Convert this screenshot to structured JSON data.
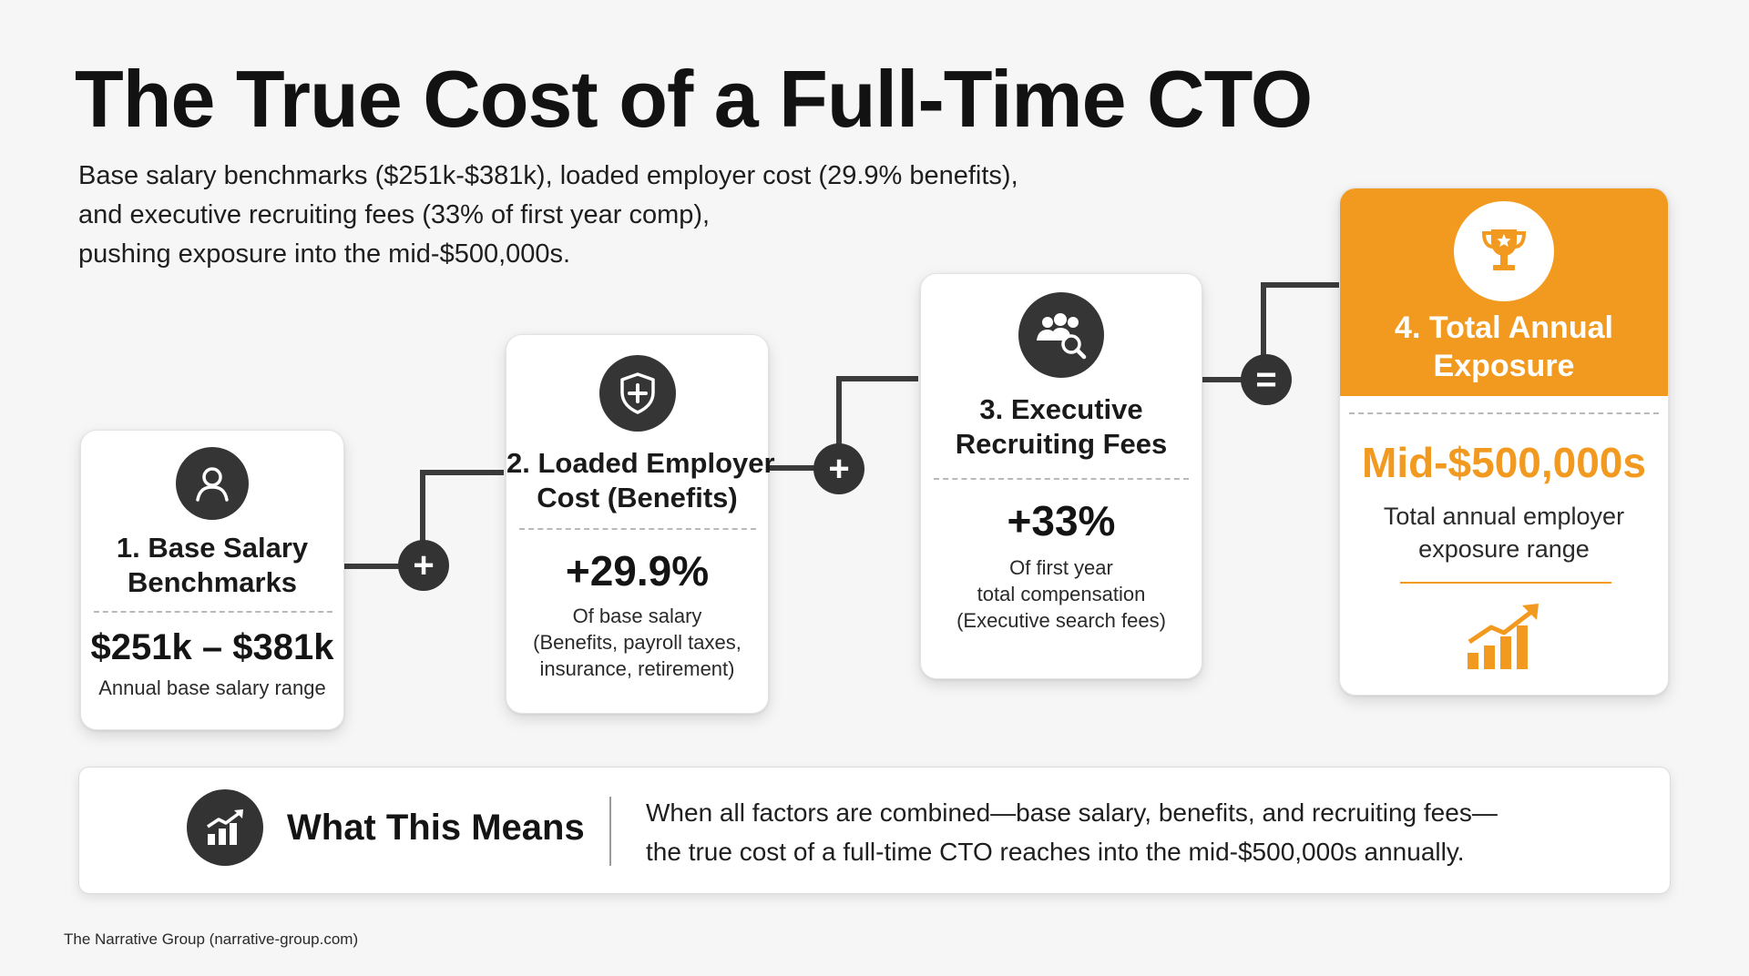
{
  "title": "The True Cost of a Full-Time CTO",
  "subtitle_lines": [
    "Base salary benchmarks ($251k-$381k), loaded employer cost (29.9% benefits),",
    "and executive recruiting fees (33% of first year comp),",
    "pushing exposure into the mid-$500,000s."
  ],
  "steps": [
    {
      "icon": "person-icon",
      "title_lines": [
        "1. Base Salary",
        "Benchmarks"
      ],
      "value": "$251k – $381k",
      "desc_lines": [
        "Annual base salary range"
      ]
    },
    {
      "icon": "shield-plus-icon",
      "title_lines": [
        "2. Loaded Employer",
        "Cost (Benefits)"
      ],
      "value": "+29.9%",
      "desc_lines": [
        "Of base salary",
        "(Benefits, payroll taxes,",
        "insurance, retirement)"
      ]
    },
    {
      "icon": "people-search-icon",
      "title_lines": [
        "3. Executive",
        "Recruiting Fees"
      ],
      "value": "+33%",
      "desc_lines": [
        "Of first year",
        "total compensation",
        "(Executive search fees)"
      ]
    },
    {
      "icon": "trophy-icon",
      "title_lines": [
        "4. Total Annual",
        "Exposure"
      ],
      "value": "Mid-$500,000s",
      "desc_lines": [
        "Total annual employer",
        "exposure range"
      ],
      "footer_icon": "rising-bar-chart-icon"
    }
  ],
  "operators": [
    "+",
    "+",
    "="
  ],
  "summary": {
    "icon": "chart-growth-icon",
    "heading": "What This Means",
    "text_lines": [
      "When all factors are combined—base salary, benefits, and recruiting fees—",
      "the true cost of a full-time CTO reaches into the mid-$500,000s annually."
    ]
  },
  "footer": "The Narrative Group (narrative-group.com)",
  "colors": {
    "accent": "#f29a1f",
    "dark": "#333333",
    "background": "#f6f6f6"
  }
}
